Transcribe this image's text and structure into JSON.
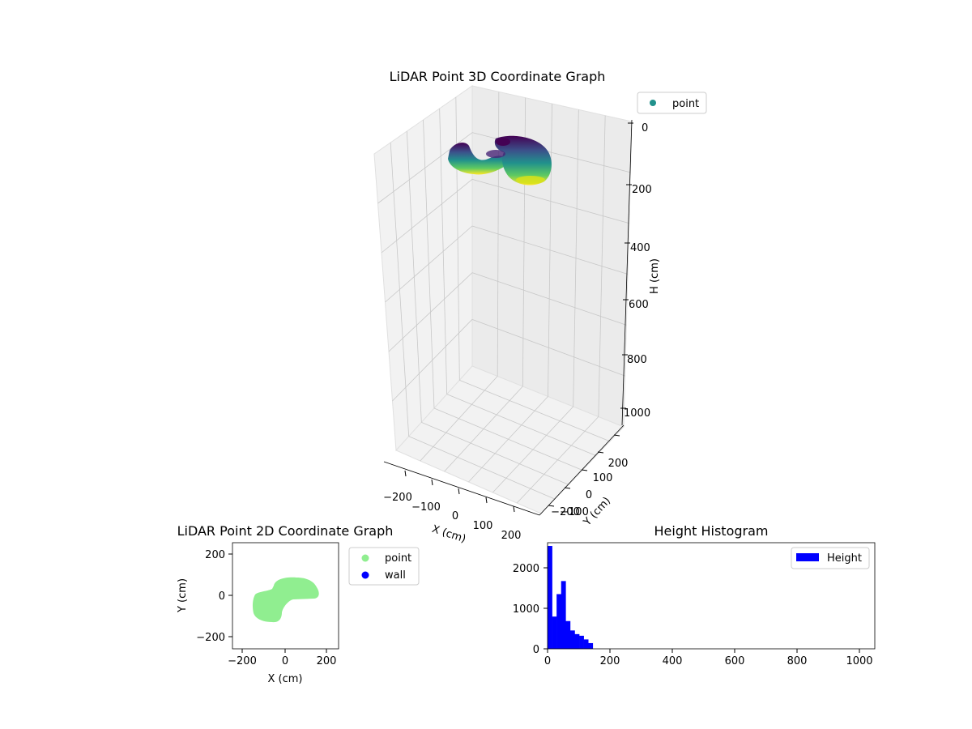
{
  "chart_data": [
    {
      "type": "scatter3d",
      "title": "LiDAR Point 3D Coordinate Graph",
      "xlabel": "X (cm)",
      "ylabel": "Y (cm)",
      "zlabel": "H (cm)",
      "xlim": [
        -250,
        250
      ],
      "ylim": [
        -250,
        250
      ],
      "zlim": [
        0,
        1050
      ],
      "z_inverted": true,
      "x_ticks": [
        "−200",
        "−100",
        "0",
        "100",
        "200"
      ],
      "y_ticks": [
        "−200",
        "−100",
        "0",
        "100",
        "200"
      ],
      "z_ticks": [
        "0",
        "200",
        "400",
        "600",
        "800",
        "1000"
      ],
      "colormap": "viridis",
      "legend": {
        "placement": "upper-right",
        "entries": [
          {
            "label": "point",
            "color": "#21918c"
          }
        ]
      },
      "grid": true
    },
    {
      "type": "scatter",
      "title": "LiDAR Point 2D Coordinate Graph",
      "xlabel": "X (cm)",
      "ylabel": "Y (cm)",
      "xlim": [
        -260,
        260
      ],
      "ylim": [
        -260,
        260
      ],
      "x_ticks": [
        "−200",
        "0",
        "200"
      ],
      "y_ticks": [
        "−200",
        "0",
        "200"
      ],
      "legend": {
        "placement": "outside-right",
        "entries": [
          {
            "label": "point",
            "color": "#90ee90"
          },
          {
            "label": "wall",
            "color": "#0000ff"
          }
        ]
      },
      "region_color": "#90ee90"
    },
    {
      "type": "bar",
      "title": "Height Histogram",
      "xlim": [
        0,
        1050
      ],
      "ylim": [
        0,
        2600
      ],
      "x_ticks": [
        "0",
        "200",
        "400",
        "600",
        "800",
        "1000"
      ],
      "y_ticks": [
        "0",
        "1000",
        "2000"
      ],
      "bar_color": "#0000ff",
      "bin_width": 14.5,
      "bin_starts": [
        0,
        14.5,
        29,
        43.5,
        58,
        72.5,
        87,
        101.5,
        116,
        130.5
      ],
      "counts": [
        2520,
        790,
        1340,
        1660,
        680,
        450,
        360,
        320,
        230,
        140
      ],
      "legend": {
        "placement": "upper-right",
        "entries": [
          {
            "label": "Height",
            "color": "#0000ff"
          }
        ]
      }
    }
  ]
}
